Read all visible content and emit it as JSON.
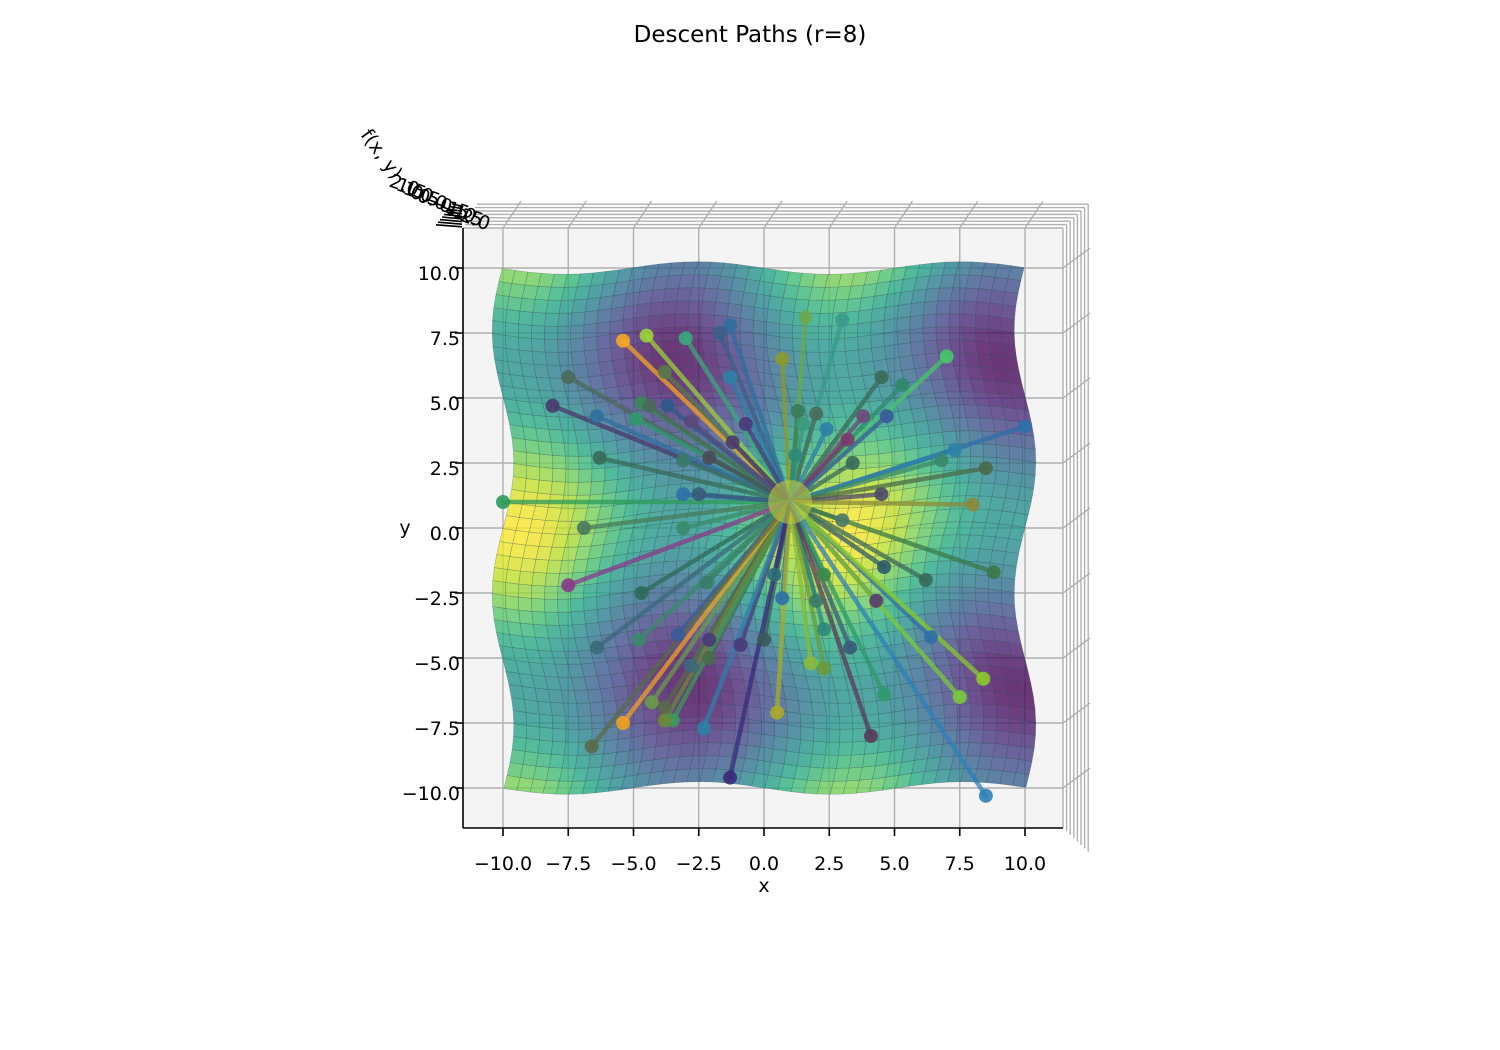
{
  "chart_data": {
    "type": "surface3d",
    "title": "Descent Paths (r=8)",
    "xlabel": "x",
    "ylabel": "y",
    "zlabel": "f(x, y)",
    "xlim": [
      -11.5,
      11.5
    ],
    "ylim": [
      -11.5,
      11.5
    ],
    "xticks": [
      "−10.0",
      "−7.5",
      "−5.0",
      "−2.5",
      "0.0",
      "2.5",
      "5.0",
      "7.5",
      "10.0"
    ],
    "xtick_values": [
      -10,
      -7.5,
      -5,
      -2.5,
      0,
      2.5,
      5,
      7.5,
      10
    ],
    "yticks": [
      "10.0",
      "7.5",
      "5.0",
      "2.5",
      "0.0",
      "−2.5",
      "−5.0",
      "−7.5",
      "−10.0"
    ],
    "ytick_values": [
      10,
      7.5,
      5,
      2.5,
      0,
      -2.5,
      -5,
      -7.5,
      -10
    ],
    "zticks": [
      "2.0",
      "1.5",
      "1.0",
      "0.5",
      "0.0",
      "−0.5",
      "−1.0",
      "−1.5",
      "−2.0"
    ],
    "surface": {
      "x_range": [
        -10,
        10
      ],
      "y_range": [
        -10,
        10
      ],
      "colormap": "viridis",
      "function": "sin(x/2) + cos(y/2)",
      "zlim": [
        -2,
        2
      ],
      "note_visible_maxima": [
        [
          -5,
          7
        ],
        [
          2,
          7
        ],
        [
          8.5,
          7
        ],
        [
          -5,
          0
        ],
        [
          8.5,
          0
        ],
        [
          -5,
          -6.5
        ],
        [
          2,
          -6.5
        ],
        [
          8.5,
          -6.5
        ]
      ]
    },
    "converge_point": [
      1,
      1
    ],
    "paths": [
      {
        "x": -5.4,
        "y": 7.2,
        "color": "#f5a623"
      },
      {
        "x": -4.5,
        "y": 7.4,
        "color": "#9bd13b"
      },
      {
        "x": -3.0,
        "y": 7.3,
        "color": "#3aa87a"
      },
      {
        "x": -1.3,
        "y": 7.8,
        "color": "#2f6f9e"
      },
      {
        "x": -1.7,
        "y": 7.5,
        "color": "#3b5f8a"
      },
      {
        "x": 1.6,
        "y": 8.1,
        "color": "#6aa84f"
      },
      {
        "x": 3.0,
        "y": 8.0,
        "color": "#3a9a88"
      },
      {
        "x": 0.7,
        "y": 6.5,
        "color": "#8c9a30"
      },
      {
        "x": 7.0,
        "y": 6.6,
        "color": "#48c46a"
      },
      {
        "x": -7.5,
        "y": 5.8,
        "color": "#4a6a5a"
      },
      {
        "x": -3.8,
        "y": 6.0,
        "color": "#5a7a4a"
      },
      {
        "x": -1.3,
        "y": 5.8,
        "color": "#2e7fa8"
      },
      {
        "x": 4.5,
        "y": 5.8,
        "color": "#3a6a5a"
      },
      {
        "x": 5.3,
        "y": 5.5,
        "color": "#2e8a6a"
      },
      {
        "x": -8.1,
        "y": 4.7,
        "color": "#4a3a6a"
      },
      {
        "x": -6.4,
        "y": 4.3,
        "color": "#2f6f9e"
      },
      {
        "x": -4.7,
        "y": 4.8,
        "color": "#3a8a5a"
      },
      {
        "x": -4.4,
        "y": 4.7,
        "color": "#4a6a5a"
      },
      {
        "x": -3.7,
        "y": 4.7,
        "color": "#2f5a8a"
      },
      {
        "x": -4.9,
        "y": 4.2,
        "color": "#2e9a6a"
      },
      {
        "x": -2.8,
        "y": 4.1,
        "color": "#5a4a7a"
      },
      {
        "x": -0.7,
        "y": 4.0,
        "color": "#4a3a7a"
      },
      {
        "x": 1.3,
        "y": 4.5,
        "color": "#3a7a5a"
      },
      {
        "x": 2.0,
        "y": 4.4,
        "color": "#4a6a5a"
      },
      {
        "x": 1.5,
        "y": 4.0,
        "color": "#3a9a78"
      },
      {
        "x": 2.4,
        "y": 3.8,
        "color": "#2e7fa8"
      },
      {
        "x": 3.8,
        "y": 4.3,
        "color": "#6a4a7a"
      },
      {
        "x": 3.2,
        "y": 3.4,
        "color": "#7a3a6a"
      },
      {
        "x": 4.7,
        "y": 4.3,
        "color": "#3a5a9a"
      },
      {
        "x": 10.0,
        "y": 3.9,
        "color": "#2e6fa8"
      },
      {
        "x": 7.3,
        "y": 3.0,
        "color": "#2e7fa8"
      },
      {
        "x": -6.3,
        "y": 2.7,
        "color": "#3a6a5a"
      },
      {
        "x": -3.1,
        "y": 2.6,
        "color": "#3a7a6a"
      },
      {
        "x": -2.1,
        "y": 2.7,
        "color": "#4a4a5a"
      },
      {
        "x": -1.2,
        "y": 3.3,
        "color": "#4a3a6a"
      },
      {
        "x": 1.2,
        "y": 2.8,
        "color": "#2e8a7a"
      },
      {
        "x": 3.4,
        "y": 2.5,
        "color": "#3a6a5a"
      },
      {
        "x": 6.8,
        "y": 2.6,
        "color": "#3a8a6a"
      },
      {
        "x": 8.5,
        "y": 2.3,
        "color": "#4a6a4a"
      },
      {
        "x": -10.0,
        "y": 1.0,
        "color": "#2e9a5a"
      },
      {
        "x": -3.1,
        "y": 1.3,
        "color": "#2e6fa8"
      },
      {
        "x": -2.5,
        "y": 1.3,
        "color": "#3a5a7a"
      },
      {
        "x": 4.5,
        "y": 1.3,
        "color": "#4a4a6a"
      },
      {
        "x": 8.0,
        "y": 0.9,
        "color": "#8a8a3a"
      },
      {
        "x": -6.9,
        "y": 0.0,
        "color": "#4a7a5a"
      },
      {
        "x": -3.1,
        "y": 0.0,
        "color": "#3a8a6a"
      },
      {
        "x": 3.0,
        "y": 0.3,
        "color": "#4a7a6a"
      },
      {
        "x": 8.8,
        "y": -1.7,
        "color": "#3a7a4a"
      },
      {
        "x": -7.5,
        "y": -2.2,
        "color": "#8a3a8a"
      },
      {
        "x": -4.7,
        "y": -2.5,
        "color": "#2e6a5a"
      },
      {
        "x": -2.2,
        "y": -2.1,
        "color": "#3a7a6a"
      },
      {
        "x": 0.4,
        "y": -1.8,
        "color": "#2e6a7a"
      },
      {
        "x": 2.3,
        "y": -1.8,
        "color": "#3a8a4a"
      },
      {
        "x": 4.6,
        "y": -1.5,
        "color": "#2e5a6a"
      },
      {
        "x": 6.2,
        "y": -2.0,
        "color": "#3a6a5a"
      },
      {
        "x": 0.7,
        "y": -2.7,
        "color": "#2e6fa8"
      },
      {
        "x": 2.0,
        "y": -2.8,
        "color": "#3a7a6a"
      },
      {
        "x": 4.3,
        "y": -2.8,
        "color": "#5a3a6a"
      },
      {
        "x": -3.3,
        "y": -4.1,
        "color": "#3a5a9a"
      },
      {
        "x": -6.4,
        "y": -4.6,
        "color": "#3a6a7a"
      },
      {
        "x": -4.8,
        "y": -4.3,
        "color": "#3a8a6a"
      },
      {
        "x": -2.1,
        "y": -4.3,
        "color": "#4a3a7a"
      },
      {
        "x": -0.9,
        "y": -4.5,
        "color": "#4a3a7a"
      },
      {
        "x": 0.0,
        "y": -4.3,
        "color": "#3a5a5a"
      },
      {
        "x": 2.3,
        "y": -3.9,
        "color": "#2e8a7a"
      },
      {
        "x": 3.3,
        "y": -4.6,
        "color": "#3a5a7a"
      },
      {
        "x": 6.4,
        "y": -4.2,
        "color": "#2e6fa8"
      },
      {
        "x": -2.8,
        "y": -5.3,
        "color": "#3a6a7a"
      },
      {
        "x": -2.1,
        "y": -5.0,
        "color": "#4a6a4a"
      },
      {
        "x": 1.8,
        "y": -5.2,
        "color": "#8aba3a"
      },
      {
        "x": 2.3,
        "y": -5.4,
        "color": "#6a9a3a"
      },
      {
        "x": -4.3,
        "y": -6.7,
        "color": "#6a9a4a"
      },
      {
        "x": -3.8,
        "y": -6.9,
        "color": "#5a6a4a"
      },
      {
        "x": -3.5,
        "y": -7.4,
        "color": "#3a9a5a"
      },
      {
        "x": -3.8,
        "y": -7.4,
        "color": "#6a8a3a"
      },
      {
        "x": -5.4,
        "y": -7.5,
        "color": "#f0a020"
      },
      {
        "x": -2.3,
        "y": -7.7,
        "color": "#2e7fa8"
      },
      {
        "x": 0.5,
        "y": -7.1,
        "color": "#aaaa2a"
      },
      {
        "x": 4.6,
        "y": -6.4,
        "color": "#2e9a6a"
      },
      {
        "x": 7.5,
        "y": -6.5,
        "color": "#7aca3a"
      },
      {
        "x": 8.4,
        "y": -5.8,
        "color": "#8aca2a"
      },
      {
        "x": 4.1,
        "y": -8.0,
        "color": "#5a3a5a"
      },
      {
        "x": -6.6,
        "y": -8.4,
        "color": "#5a6a4a"
      },
      {
        "x": -1.3,
        "y": -9.6,
        "color": "#3a2a7a"
      },
      {
        "x": 8.5,
        "y": -10.3,
        "color": "#2e7fb8"
      }
    ]
  }
}
